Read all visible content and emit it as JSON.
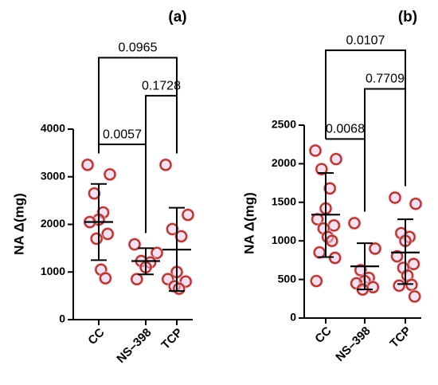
{
  "chart_data": [
    {
      "type": "scatter",
      "panel_label": "(a)",
      "ylabel": "NA Δ(mg)",
      "categories": [
        "CC",
        "NS–398",
        "TCP"
      ],
      "yticks": [
        0,
        1000,
        2000,
        3000,
        4000
      ],
      "ylim": [
        0,
        4000
      ],
      "grid": false,
      "points": [
        [
          3250,
          3050,
          2650,
          2250,
          2100,
          2050,
          1800,
          1700,
          1050,
          870
        ],
        [
          1580,
          1400,
          1230,
          1200,
          1100,
          850
        ],
        [
          3250,
          2200,
          1900,
          1750,
          1000,
          850,
          800,
          700,
          650
        ]
      ],
      "summary": [
        {
          "center": 2050,
          "low": 1250,
          "high": 2850
        },
        {
          "center": 1230,
          "low": 950,
          "high": 1500
        },
        {
          "center": 1470,
          "low": 600,
          "high": 2350
        }
      ],
      "comparisons": [
        {
          "a": 0,
          "b": 1,
          "p": "0.0057",
          "y": 3680
        },
        {
          "a": 1,
          "b": 2,
          "p": "0.1728",
          "y": 4700
        },
        {
          "a": 0,
          "b": 2,
          "p": "0.0965",
          "y": 5500
        }
      ],
      "marker_color": "#b03a2e",
      "marker_halo": "#f2c4e8"
    },
    {
      "type": "scatter",
      "panel_label": "(b)",
      "ylabel": "NA Δ(mg)",
      "categories": [
        "CC",
        "NS–398",
        "TCP"
      ],
      "yticks": [
        0,
        500,
        1000,
        1500,
        2000,
        2500
      ],
      "ylim": [
        0,
        2500
      ],
      "grid": false,
      "points": [
        [
          2170,
          2060,
          1930,
          1680,
          1420,
          1280,
          1200,
          1160,
          1050,
          1000,
          850,
          780,
          480
        ],
        [
          1230,
          900,
          620,
          520,
          480,
          450,
          400,
          370
        ],
        [
          1560,
          1480,
          1100,
          1050,
          1000,
          800,
          700,
          650,
          550,
          430,
          420,
          280
        ]
      ],
      "summary": [
        {
          "center": 1340,
          "low": 790,
          "high": 1880
        },
        {
          "center": 670,
          "low": 370,
          "high": 970
        },
        {
          "center": 850,
          "low": 440,
          "high": 1280
        }
      ],
      "comparisons": [
        {
          "a": 0,
          "b": 1,
          "p": "0.0068",
          "y": 2320
        },
        {
          "a": 1,
          "b": 2,
          "p": "0.7709",
          "y": 2970
        },
        {
          "a": 0,
          "b": 2,
          "p": "0.0107",
          "y": 3470
        }
      ],
      "marker_color": "#b03a2e",
      "marker_halo": "#f2c4e8"
    }
  ]
}
